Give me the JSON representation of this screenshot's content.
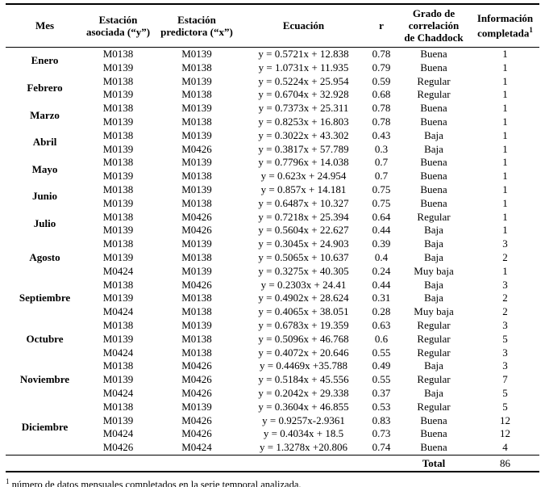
{
  "table": {
    "headers": [
      {
        "lines": [
          "Mes"
        ]
      },
      {
        "lines": [
          "Estación",
          "asociada (“y”)"
        ]
      },
      {
        "lines": [
          "Estación",
          "predictora (“x”)"
        ]
      },
      {
        "lines": [
          "Ecuación"
        ]
      },
      {
        "lines": [
          "r"
        ]
      },
      {
        "lines": [
          "Grado de",
          "correlación",
          "de Chaddock"
        ]
      },
      {
        "lines": [
          "Información",
          "completada"
        ],
        "sup": "1"
      }
    ],
    "groups": [
      {
        "month": "Enero",
        "rows": [
          [
            "M0138",
            "M0139",
            "y = 0.5721x + 12.838",
            "0.78",
            "Buena",
            "1"
          ],
          [
            "M0139",
            "M0138",
            "y = 1.0731x + 11.935",
            "0.79",
            "Buena",
            "1"
          ]
        ]
      },
      {
        "month": "Febrero",
        "rows": [
          [
            "M0138",
            "M0139",
            "y = 0.5224x + 25.954",
            "0.59",
            "Regular",
            "1"
          ],
          [
            "M0139",
            "M0138",
            "y = 0.6704x + 32.928",
            "0.68",
            "Regular",
            "1"
          ]
        ]
      },
      {
        "month": "Marzo",
        "rows": [
          [
            "M0138",
            "M0139",
            "y = 0.7373x + 25.311",
            "0.78",
            "Buena",
            "1"
          ],
          [
            "M0139",
            "M0138",
            "y = 0.8253x + 16.803",
            "0.78",
            "Buena",
            "1"
          ]
        ]
      },
      {
        "month": "Abril",
        "rows": [
          [
            "M0138",
            "M0139",
            "y = 0.3022x + 43.302",
            "0.43",
            "Baja",
            "1"
          ],
          [
            "M0139",
            "M0426",
            "y = 0.3817x + 57.789",
            "0.3",
            "Baja",
            "1"
          ]
        ]
      },
      {
        "month": "Mayo",
        "rows": [
          [
            "M0138",
            "M0139",
            "y = 0.7796x + 14.038",
            "0.7",
            "Buena",
            "1"
          ],
          [
            "M0139",
            "M0138",
            "y = 0.623x + 24.954",
            "0.7",
            "Buena",
            "1"
          ]
        ]
      },
      {
        "month": "Junio",
        "rows": [
          [
            "M0138",
            "M0139",
            "y = 0.857x + 14.181",
            "0.75",
            "Buena",
            "1"
          ],
          [
            "M0139",
            "M0138",
            "y = 0.6487x + 10.327",
            "0.75",
            "Buena",
            "1"
          ]
        ]
      },
      {
        "month": "Julio",
        "rows": [
          [
            "M0138",
            "M0426",
            "y = 0.7218x + 25.394",
            "0.64",
            "Regular",
            "1"
          ],
          [
            "M0139",
            "M0426",
            "y = 0.5604x + 22.627",
            "0.44",
            "Baja",
            "1"
          ]
        ]
      },
      {
        "month": "Agosto",
        "rows": [
          [
            "M0138",
            "M0139",
            "y = 0.3045x + 24.903",
            "0.39",
            "Baja",
            "3"
          ],
          [
            "M0139",
            "M0138",
            "y = 0.5065x + 10.637",
            "0.4",
            "Baja",
            "2"
          ],
          [
            "M0424",
            "M0139",
            "y = 0.3275x + 40.305",
            "0.24",
            "Muy baja",
            "1"
          ]
        ]
      },
      {
        "month": "Septiembre",
        "rows": [
          [
            "M0138",
            "M0426",
            "y = 0.2303x + 24.41",
            "0.44",
            "Baja",
            "3"
          ],
          [
            "M0139",
            "M0138",
            "y = 0.4902x + 28.624",
            "0.31",
            "Baja",
            "2"
          ],
          [
            "M0424",
            "M0138",
            "y = 0.4065x + 38.051",
            "0.28",
            "Muy baja",
            "2"
          ]
        ]
      },
      {
        "month": "Octubre",
        "rows": [
          [
            "M0138",
            "M0139",
            "y = 0.6783x + 19.359",
            "0.63",
            "Regular",
            "3"
          ],
          [
            "M0139",
            "M0138",
            "y = 0.5096x + 46.768",
            "0.6",
            "Regular",
            "5"
          ],
          [
            "M0424",
            "M0138",
            "y = 0.4072x + 20.646",
            "0.55",
            "Regular",
            "3"
          ]
        ]
      },
      {
        "month": "Noviembre",
        "rows": [
          [
            "M0138",
            "M0426",
            "y = 0.4469x +35.788",
            "0.49",
            "Baja",
            "3"
          ],
          [
            "M0139",
            "M0426",
            "y = 0.5184x + 45.556",
            "0.55",
            "Regular",
            "7"
          ],
          [
            "M0424",
            "M0426",
            "y = 0.2042x + 29.338",
            "0.37",
            "Baja",
            "5"
          ]
        ]
      },
      {
        "month": "Diciembre",
        "rows": [
          [
            "M0138",
            "M0139",
            "y = 0.3604x + 46.855",
            "0.53",
            "Regular",
            "5"
          ],
          [
            "M0139",
            "M0426",
            "y = 0.9257x-2.9361",
            "0.83",
            "Buena",
            "12"
          ],
          [
            "M0424",
            "M0426",
            "y = 0.4034x + 18.5",
            "0.73",
            "Buena",
            "12"
          ],
          [
            "M0426",
            "M0424",
            "y = 1.3278x +20.806",
            "0.74",
            "Buena",
            "4"
          ]
        ]
      }
    ],
    "total": {
      "label": "Total",
      "value": "86"
    }
  },
  "footnote": {
    "marker": "1",
    "text": "número de datos mensuales completados en la serie temporal analizada."
  }
}
